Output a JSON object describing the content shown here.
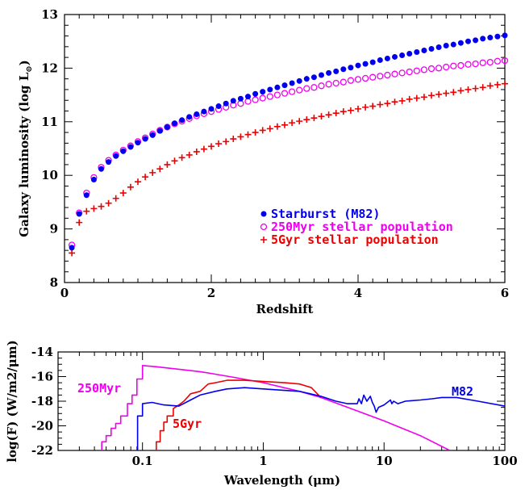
{
  "colors": {
    "blue": "#0000ee",
    "magenta": "#ee00ee",
    "red": "#ee0000",
    "axis": "#000000"
  },
  "chart_data": [
    {
      "type": "scatter",
      "xlabel": "Redshift",
      "ylabel": "Galaxy luminosity (log L",
      "ylabel_sub": "⊙",
      "ylabel_close": ")",
      "xlim": [
        0,
        6
      ],
      "ylim": [
        8,
        13
      ],
      "xticks": [
        0,
        2,
        4,
        6
      ],
      "xtick_labels": [
        "0",
        "2",
        "4",
        "6"
      ],
      "yticks": [
        8,
        9,
        10,
        11,
        12,
        13
      ],
      "ytick_labels": [
        "8",
        "9",
        "10",
        "11",
        "12",
        "13"
      ],
      "legend": [
        {
          "label": "Starburst (M82)",
          "color": "#0000ee",
          "marker": "filled-circle"
        },
        {
          "label": "250Myr stellar population",
          "color": "#ee00ee",
          "marker": "open-circle"
        },
        {
          "label": "5Gyr stellar population",
          "color": "#ee0000",
          "marker": "plus"
        }
      ],
      "legend_position": "lower-right",
      "series": [
        {
          "name": "Starburst (M82)",
          "marker": "filled-circle",
          "color": "#0000ee",
          "x": [
            0.1,
            0.2,
            0.3,
            0.4,
            0.5,
            0.6,
            0.7,
            0.8,
            0.9,
            1.0,
            1.1,
            1.2,
            1.3,
            1.4,
            1.5,
            1.6,
            1.7,
            1.8,
            1.9,
            2.0,
            2.1,
            2.2,
            2.3,
            2.4,
            2.5,
            2.6,
            2.7,
            2.8,
            2.9,
            3.0,
            3.1,
            3.2,
            3.3,
            3.4,
            3.5,
            3.6,
            3.7,
            3.8,
            3.9,
            4.0,
            4.1,
            4.2,
            4.3,
            4.4,
            4.5,
            4.6,
            4.7,
            4.8,
            4.9,
            5.0,
            5.1,
            5.2,
            5.3,
            5.4,
            5.5,
            5.6,
            5.7,
            5.8,
            5.9,
            6.0
          ],
          "y": [
            8.65,
            9.28,
            9.63,
            9.92,
            10.12,
            10.25,
            10.36,
            10.45,
            10.53,
            10.61,
            10.68,
            10.75,
            10.83,
            10.9,
            10.97,
            11.03,
            11.09,
            11.14,
            11.19,
            11.24,
            11.29,
            11.34,
            11.39,
            11.43,
            11.47,
            11.52,
            11.56,
            11.6,
            11.64,
            11.68,
            11.72,
            11.76,
            11.8,
            11.83,
            11.87,
            11.91,
            11.94,
            11.98,
            12.01,
            12.05,
            12.08,
            12.11,
            12.15,
            12.18,
            12.21,
            12.24,
            12.27,
            12.3,
            12.33,
            12.36,
            12.39,
            12.42,
            12.44,
            12.47,
            12.5,
            12.52,
            12.55,
            12.57,
            12.59,
            12.61
          ]
        },
        {
          "name": "250Myr stellar population",
          "marker": "open-circle",
          "color": "#ee00ee",
          "x": [
            0.1,
            0.2,
            0.3,
            0.4,
            0.5,
            0.6,
            0.7,
            0.8,
            0.9,
            1.0,
            1.1,
            1.2,
            1.3,
            1.4,
            1.5,
            1.6,
            1.7,
            1.8,
            1.9,
            2.0,
            2.1,
            2.2,
            2.3,
            2.4,
            2.5,
            2.6,
            2.7,
            2.8,
            2.9,
            3.0,
            3.1,
            3.2,
            3.3,
            3.4,
            3.5,
            3.6,
            3.7,
            3.8,
            3.9,
            4.0,
            4.1,
            4.2,
            4.3,
            4.4,
            4.5,
            4.6,
            4.7,
            4.8,
            4.9,
            5.0,
            5.1,
            5.2,
            5.3,
            5.4,
            5.5,
            5.6,
            5.7,
            5.8,
            5.9,
            6.0
          ],
          "y": [
            8.7,
            9.3,
            9.67,
            9.96,
            10.15,
            10.28,
            10.38,
            10.47,
            10.55,
            10.63,
            10.7,
            10.77,
            10.84,
            10.9,
            10.96,
            11.01,
            11.06,
            11.11,
            11.15,
            11.19,
            11.23,
            11.27,
            11.31,
            11.34,
            11.38,
            11.41,
            11.44,
            11.47,
            11.5,
            11.53,
            11.56,
            11.59,
            11.62,
            11.64,
            11.67,
            11.7,
            11.72,
            11.74,
            11.77,
            11.79,
            11.81,
            11.83,
            11.85,
            11.87,
            11.89,
            11.91,
            11.93,
            11.95,
            11.97,
            11.99,
            12.0,
            12.02,
            12.04,
            12.05,
            12.07,
            12.08,
            12.1,
            12.11,
            12.13,
            12.14
          ]
        },
        {
          "name": "5Gyr stellar population",
          "marker": "plus",
          "color": "#ee0000",
          "x": [
            0.1,
            0.2,
            0.3,
            0.4,
            0.5,
            0.6,
            0.7,
            0.8,
            0.9,
            1.0,
            1.1,
            1.2,
            1.3,
            1.4,
            1.5,
            1.6,
            1.7,
            1.8,
            1.9,
            2.0,
            2.1,
            2.2,
            2.3,
            2.4,
            2.5,
            2.6,
            2.7,
            2.8,
            2.9,
            3.0,
            3.1,
            3.2,
            3.3,
            3.4,
            3.5,
            3.6,
            3.7,
            3.8,
            3.9,
            4.0,
            4.1,
            4.2,
            4.3,
            4.4,
            4.5,
            4.6,
            4.7,
            4.8,
            4.9,
            5.0,
            5.1,
            5.2,
            5.3,
            5.4,
            5.5,
            5.6,
            5.7,
            5.8,
            5.9,
            6.0
          ],
          "y": [
            8.55,
            9.12,
            9.33,
            9.38,
            9.42,
            9.48,
            9.57,
            9.67,
            9.78,
            9.88,
            9.97,
            10.05,
            10.12,
            10.2,
            10.27,
            10.33,
            10.38,
            10.44,
            10.49,
            10.54,
            10.59,
            10.63,
            10.68,
            10.72,
            10.76,
            10.8,
            10.84,
            10.87,
            10.91,
            10.94,
            10.98,
            11.01,
            11.04,
            11.07,
            11.1,
            11.13,
            11.16,
            11.19,
            11.21,
            11.24,
            11.27,
            11.29,
            11.32,
            11.34,
            11.37,
            11.39,
            11.42,
            11.44,
            11.46,
            11.49,
            11.51,
            11.53,
            11.55,
            11.58,
            11.6,
            11.62,
            11.64,
            11.67,
            11.69,
            11.71
          ]
        }
      ]
    },
    {
      "type": "line",
      "xlabel": "Wavelength (",
      "xlabel_unit": "μm",
      "xlabel_close": ")",
      "ylabel": "log(F) (W/m2/",
      "ylabel_unit": "μm",
      "ylabel_close": ")",
      "xscale": "log",
      "xlim": [
        0.02,
        100
      ],
      "ylim": [
        -22,
        -14
      ],
      "xticks": [
        0.1,
        1,
        10,
        100
      ],
      "xtick_labels": [
        "0.1",
        "1",
        "10",
        "100"
      ],
      "yticks": [
        -22,
        -20,
        -18,
        -16,
        -14
      ],
      "ytick_labels": [
        "-22",
        "-20",
        "-18",
        "-16",
        "-14"
      ],
      "annotations": [
        {
          "text": "250Myr",
          "color": "#ee00ee"
        },
        {
          "text": "5Gyr",
          "color": "#ee0000"
        },
        {
          "text": "M82",
          "color": "#0000ee"
        }
      ],
      "series": [
        {
          "name": "250Myr",
          "color": "#ee00ee",
          "x": [
            0.046,
            0.046,
            0.05,
            0.05,
            0.055,
            0.055,
            0.06,
            0.06,
            0.066,
            0.066,
            0.075,
            0.075,
            0.082,
            0.082,
            0.09,
            0.09,
            0.1,
            0.1,
            0.13,
            0.2,
            0.3,
            0.4,
            0.6,
            1.0,
            2.0,
            3.0,
            5.0,
            10,
            20,
            35
          ],
          "y": [
            -22,
            -21.3,
            -21.3,
            -20.8,
            -20.8,
            -20.2,
            -20.2,
            -19.8,
            -19.8,
            -19.2,
            -19.2,
            -18.2,
            -18.2,
            -17.5,
            -17.5,
            -16.2,
            -16.2,
            -15.1,
            -15.2,
            -15.4,
            -15.6,
            -15.8,
            -16.1,
            -16.5,
            -17.2,
            -17.7,
            -18.5,
            -19.6,
            -20.8,
            -22
          ]
        },
        {
          "name": "5Gyr",
          "color": "#ee0000",
          "x": [
            0.13,
            0.13,
            0.14,
            0.14,
            0.15,
            0.15,
            0.16,
            0.16,
            0.18,
            0.18,
            0.2,
            0.22,
            0.25,
            0.3,
            0.35,
            0.4,
            0.5,
            0.7,
            1.0,
            1.5,
            2.0,
            2.5,
            3.0
          ],
          "y": [
            -22,
            -21.3,
            -21.3,
            -20.4,
            -20.4,
            -19.7,
            -19.7,
            -19.2,
            -19.2,
            -18.6,
            -18.3,
            -18.0,
            -17.4,
            -17.2,
            -16.6,
            -16.5,
            -16.3,
            -16.3,
            -16.4,
            -16.5,
            -16.6,
            -16.9,
            -17.7
          ]
        },
        {
          "name": "M82",
          "color": "#0000ee",
          "x": [
            0.091,
            0.091,
            0.1,
            0.1,
            0.12,
            0.15,
            0.2,
            0.25,
            0.3,
            0.4,
            0.5,
            0.7,
            1.0,
            2.0,
            3.0,
            4.0,
            5.0,
            6.0,
            6.2,
            6.5,
            6.8,
            7.2,
            7.7,
            8.0,
            8.3,
            8.6,
            9.0,
            10.0,
            11.3,
            11.6,
            12.0,
            13.0,
            15.0,
            20,
            25,
            30,
            40,
            60,
            100
          ],
          "y": [
            -22,
            -19.2,
            -19.2,
            -18.2,
            -18.1,
            -18.3,
            -18.4,
            -17.9,
            -17.5,
            -17.2,
            -17.0,
            -16.9,
            -17.0,
            -17.2,
            -17.6,
            -18.0,
            -18.2,
            -18.2,
            -17.8,
            -18.2,
            -17.5,
            -18.0,
            -17.6,
            -18.1,
            -18.4,
            -18.9,
            -18.5,
            -18.3,
            -17.9,
            -18.2,
            -18.0,
            -18.2,
            -18.0,
            -17.9,
            -17.8,
            -17.7,
            -17.7,
            -18.0,
            -18.4
          ]
        }
      ]
    }
  ]
}
